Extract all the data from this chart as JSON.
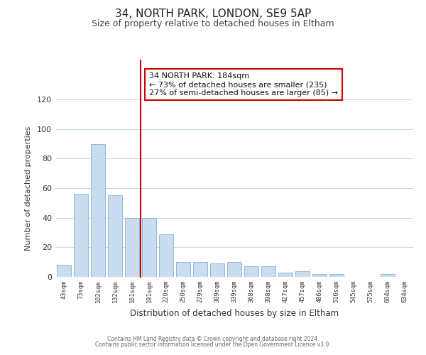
{
  "title": "34, NORTH PARK, LONDON, SE9 5AP",
  "subtitle": "Size of property relative to detached houses in Eltham",
  "xlabel": "Distribution of detached houses by size in Eltham",
  "ylabel": "Number of detached properties",
  "categories": [
    "43sqm",
    "73sqm",
    "102sqm",
    "132sqm",
    "161sqm",
    "191sqm",
    "220sqm",
    "250sqm",
    "279sqm",
    "309sqm",
    "339sqm",
    "368sqm",
    "398sqm",
    "427sqm",
    "457sqm",
    "486sqm",
    "516sqm",
    "545sqm",
    "575sqm",
    "604sqm",
    "634sqm"
  ],
  "values": [
    8,
    56,
    90,
    55,
    40,
    40,
    29,
    10,
    10,
    9,
    10,
    7,
    7,
    3,
    4,
    2,
    2,
    0,
    0,
    2,
    0
  ],
  "bar_color": "#c9dcf0",
  "bar_edge_color": "#8ab0d0",
  "property_line_color": "#cc0000",
  "property_line_index": 4.5,
  "annotation_title": "34 NORTH PARK: 184sqm",
  "annotation_line1": "← 73% of detached houses are smaller (235)",
  "annotation_line2": "27% of semi-detached houses are larger (85) →",
  "annotation_box_color": "#ffffff",
  "annotation_box_edge": "#cc0000",
  "ylim": [
    0,
    120
  ],
  "yticks": [
    0,
    20,
    40,
    60,
    80,
    100,
    120
  ],
  "footer1": "Contains HM Land Registry data © Crown copyright and database right 2024.",
  "footer2": "Contains public sector information licensed under the Open Government Licence v3.0.",
  "background_color": "#ffffff",
  "grid_color": "#c8d8e8"
}
